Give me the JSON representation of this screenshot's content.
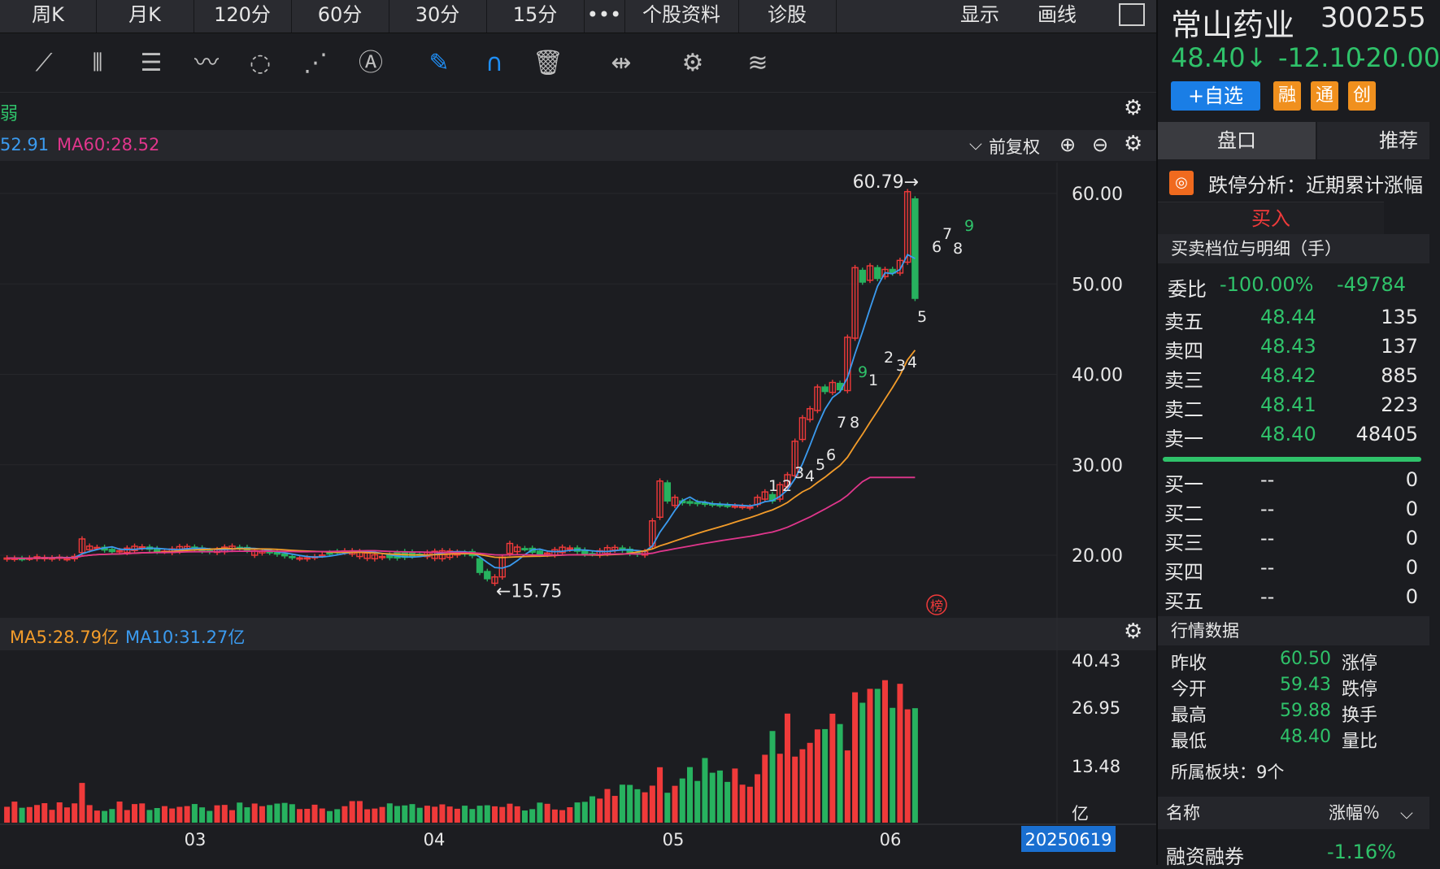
{
  "tabs": [
    "周K",
    "月K",
    "120分",
    "60分",
    "30分",
    "15分",
    "•••",
    "个股资料",
    "诊股"
  ],
  "tab_right": {
    "display": "显示",
    "draw": "画线"
  },
  "subbar_text": "弱",
  "ma_line": {
    "ma_a": "52.91",
    "ma60": "MA60:28.52"
  },
  "fq_label": "前复权",
  "y_ticks": [
    "60.00",
    "50.00",
    "40.00",
    "30.00",
    "20.00"
  ],
  "high_label": "60.79→",
  "low_label": "←15.75",
  "vol_legend": {
    "ma5": "MA5:28.79亿",
    "ma10": "MA10:31.27亿"
  },
  "vol_ticks": [
    "40.43",
    "26.95",
    "13.48",
    "亿"
  ],
  "x_ticks": [
    "03",
    "04",
    "05",
    "06"
  ],
  "date_label": "20250619",
  "seq_nums": [
    "1",
    "2",
    "3",
    "4",
    "5",
    "6",
    "7",
    "8",
    "9",
    "1",
    "2",
    "3",
    "4",
    "5",
    "6",
    "7",
    "8",
    "9"
  ],
  "bang_label": "榜",
  "stock": {
    "name": "常山药业",
    "code": "300255",
    "price": "48.40↓",
    "change": "-12.10",
    "pct": "-20.00"
  },
  "buttons": {
    "add": "+自选",
    "rong": "融",
    "tong": "通",
    "chuang": "创"
  },
  "right_tabs": [
    "盘口",
    "推荐"
  ],
  "alert": "跌停分析：近期累计涨幅",
  "buy_tab": "买入",
  "book_title": "买卖档位与明细（手）",
  "weibi": {
    "label": "委比",
    "pct": "-100.00%",
    "diff": "-49784"
  },
  "asks": [
    {
      "label": "卖五",
      "price": "48.44",
      "vol": "135"
    },
    {
      "label": "卖四",
      "price": "48.43",
      "vol": "137"
    },
    {
      "label": "卖三",
      "price": "48.42",
      "vol": "885"
    },
    {
      "label": "卖二",
      "price": "48.41",
      "vol": "223"
    },
    {
      "label": "卖一",
      "price": "48.40",
      "vol": "48405"
    }
  ],
  "bids": [
    {
      "label": "买一",
      "price": "--",
      "vol": "0"
    },
    {
      "label": "买二",
      "price": "--",
      "vol": "0"
    },
    {
      "label": "买三",
      "price": "--",
      "vol": "0"
    },
    {
      "label": "买四",
      "price": "--",
      "vol": "0"
    },
    {
      "label": "买五",
      "price": "--",
      "vol": "0"
    }
  ],
  "quote_title": "行情数据",
  "quotes": [
    {
      "label": "昨收",
      "value": "60.50",
      "tag": "涨停"
    },
    {
      "label": "今开",
      "value": "59.43",
      "tag": "跌停"
    },
    {
      "label": "最高",
      "value": "59.88",
      "tag": "换手"
    },
    {
      "label": "最低",
      "value": "48.40",
      "tag": "量比"
    }
  ],
  "sector": "所属板块：9个",
  "sector_head": {
    "name": "名称",
    "pct": "涨幅％"
  },
  "sector_row": {
    "name": "融资融券",
    "pct": "-1.16%"
  },
  "colors": {
    "up": "#ef3a3a",
    "down": "#27b25f",
    "ma5": "#3b9bf0",
    "ma10": "#f39c2a",
    "ma60": "#e0368c"
  },
  "chart_data": {
    "type": "candlestick",
    "price_axis": [
      20,
      60
    ],
    "high": 60.79,
    "low": 15.75,
    "ma60": 28.52,
    "vol_ma5": 28.79,
    "vol_ma10": 31.27,
    "vol_axis": [
      13.48,
      40.43
    ]
  }
}
